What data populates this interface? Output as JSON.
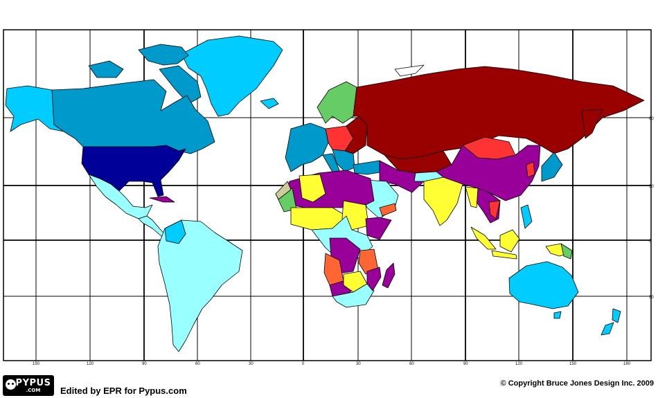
{
  "map": {
    "longitude_labels": [
      "150",
      "120",
      "90",
      "60",
      "30",
      "0",
      "30",
      "60",
      "90",
      "120",
      "150",
      "180"
    ],
    "latitude_labels": [
      "60",
      "30",
      "0",
      "30"
    ],
    "colors": {
      "light_cyan": "#99ffff",
      "sky": "#00ccff",
      "medium_blue": "#0099cc",
      "navy": "#000099",
      "dark_red": "#990000",
      "red": "#ff3333",
      "purple": "#990099",
      "yellow": "#ffff33",
      "green": "#66cc66",
      "orange": "#ff6633",
      "khaki": "#cccc99",
      "outline": "#000000"
    }
  },
  "footer": {
    "logo_text": "PYPUS",
    "logo_subtext": ".COM",
    "edited_text": "Edited by EPR for Pypus.com",
    "copyright_text": "© Copyright Bruce Jones Design Inc. 2009"
  }
}
